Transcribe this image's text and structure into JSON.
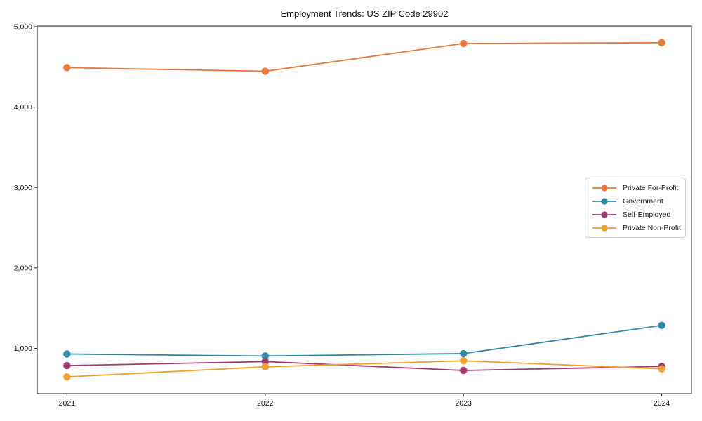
{
  "title": "Employment Trends: US ZIP Code 29902",
  "chart_data": {
    "type": "line",
    "x": [
      2021,
      2022,
      2023,
      2024
    ],
    "x_labels": [
      "2021",
      "2022",
      "2023",
      "2024"
    ],
    "series": [
      {
        "name": "Private For-Profit",
        "color": "#E8793C",
        "values": [
          4490,
          4445,
          4790,
          4800
        ]
      },
      {
        "name": "Government",
        "color": "#2E8BA5",
        "values": [
          930,
          905,
          935,
          1285
        ]
      },
      {
        "name": "Self-Employed",
        "color": "#A23B72",
        "values": [
          785,
          835,
          725,
          775
        ]
      },
      {
        "name": "Private Non-Profit",
        "color": "#F0A02F",
        "values": [
          645,
          770,
          845,
          745
        ]
      }
    ],
    "y_ticks": [
      1000,
      2000,
      3000,
      4000,
      5000
    ],
    "y_tick_labels": [
      "1,000",
      "2,000",
      "3,000",
      "4,000",
      "5,000"
    ],
    "xlim": [
      2020.85,
      2024.15
    ],
    "ylim": [
      437,
      5008
    ],
    "xlabel": "",
    "ylabel": "",
    "grid": false,
    "legend_position": "center right",
    "axis_color": "#1a1a1a"
  }
}
